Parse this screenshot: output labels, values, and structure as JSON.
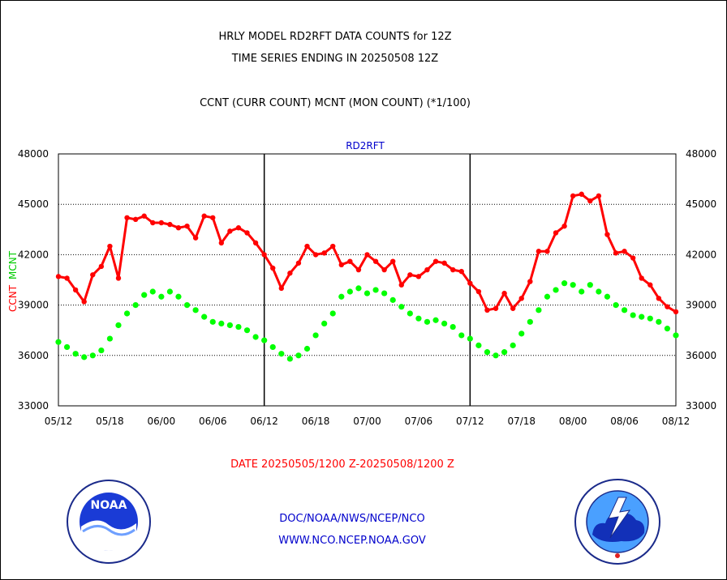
{
  "titles": {
    "line1": "HRLY MODEL RD2RFT DATA COUNTS for 12Z",
    "line2": "TIME SERIES ENDING IN 20250508 12Z",
    "line3": "CCNT (CURR COUNT) MCNT (MON COUNT) (*1/100)"
  },
  "footer": {
    "date_range": "DATE 20250505/1200 Z-20250508/1200 Z",
    "org": "DOC/NOAA/NWS/NCEP/NCO",
    "url": "WWW.NCO.NCEP.NOAA.GOV"
  },
  "logos": {
    "left": "noaa-logo",
    "right": "national-weather-service-logo"
  },
  "chart_data": {
    "type": "line",
    "title": "RD2RFT",
    "ylabel_ccnt": "CCNT",
    "ylabel_mcnt": "MCNT",
    "ylim": [
      33000,
      48000
    ],
    "yticks": [
      "33000",
      "36000",
      "39000",
      "42000",
      "45000",
      "48000"
    ],
    "xticks": [
      "05/12",
      "05/18",
      "06/00",
      "06/06",
      "06/12",
      "06/18",
      "07/00",
      "07/06",
      "07/12",
      "07/18",
      "08/00",
      "08/06",
      "08/12"
    ],
    "x_hours_per_point": 1,
    "colors": {
      "ccnt": "#ff0000",
      "mcnt": "#00ff00",
      "title": "#0000cc"
    },
    "series": [
      {
        "name": "CCNT",
        "values": [
          40700,
          40600,
          39900,
          39200,
          40800,
          41300,
          42500,
          40600,
          44200,
          44100,
          44300,
          43900,
          43900,
          43800,
          43600,
          43700,
          43000,
          44300,
          44200,
          42700,
          43400,
          43600,
          43300,
          42700,
          42000,
          41200,
          40000,
          40900,
          41500,
          42500,
          42000,
          42100,
          42500,
          41400,
          41600,
          41100,
          42000,
          41600,
          41100,
          41600,
          40200,
          40800,
          40700,
          41100,
          41600,
          41500,
          41100,
          41000,
          40300,
          39800,
          38700,
          38800,
          39700,
          38800,
          39400,
          40400,
          42200,
          42200,
          43300,
          43700,
          45500,
          45600,
          45200,
          45500,
          43200,
          42100,
          42200,
          41800,
          40600,
          40200,
          39400,
          38900,
          38600
        ]
      },
      {
        "name": "MCNT",
        "values": [
          36800,
          36500,
          36100,
          35900,
          36000,
          36300,
          37000,
          37800,
          38500,
          39000,
          39600,
          39800,
          39500,
          39800,
          39500,
          39000,
          38700,
          38300,
          38000,
          37900,
          37800,
          37700,
          37500,
          37100,
          36900,
          36500,
          36100,
          35800,
          36000,
          36400,
          37200,
          37900,
          38500,
          39500,
          39800,
          40000,
          39700,
          39900,
          39700,
          39300,
          38900,
          38500,
          38200,
          38000,
          38100,
          37900,
          37700,
          37200,
          37000,
          36600,
          36200,
          36000,
          36200,
          36600,
          37300,
          38000,
          38700,
          39500,
          39900,
          40300,
          40200,
          39800,
          40200,
          39800,
          39500,
          39000,
          38700,
          38400,
          38300,
          38200,
          38000,
          37600,
          37200
        ]
      }
    ]
  }
}
